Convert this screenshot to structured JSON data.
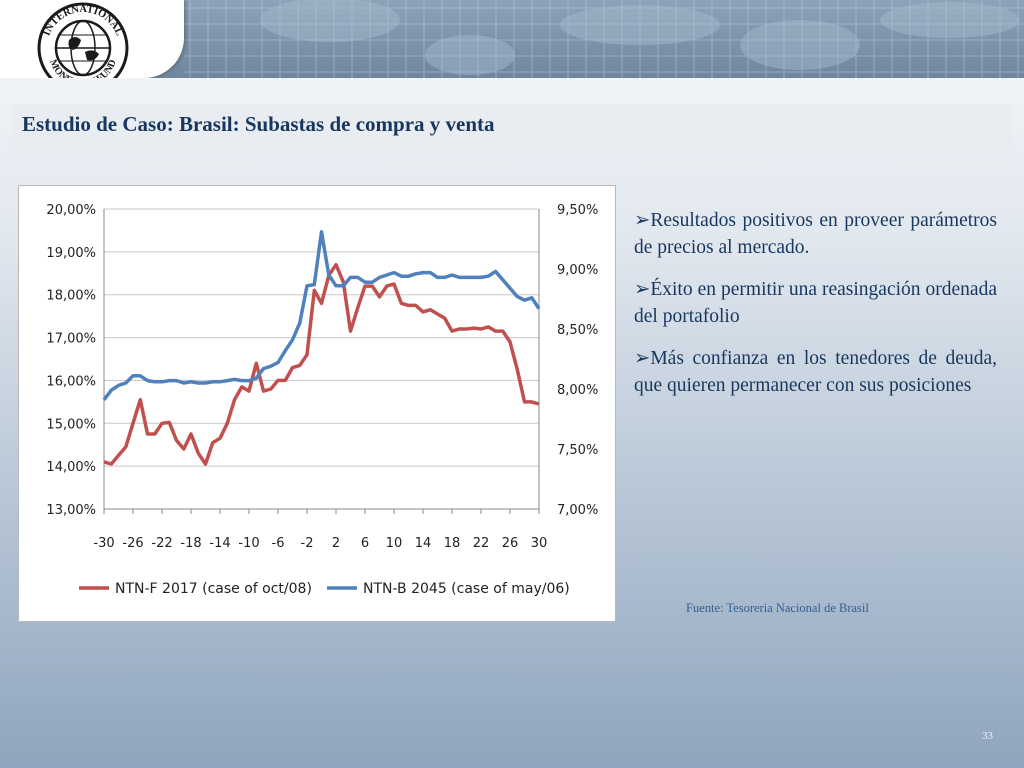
{
  "slide": {
    "logo_text": "INTERNATIONAL MONETARY FUND",
    "title": "Estudio de Caso: Brasil: Subastas de compra y venta",
    "bullets": [
      "Resultados positivos en proveer parámetros de precios al mercado.",
      "Éxito en permitir una reasingación ordenada del portafolio",
      "Más confianza en los tenedores de deuda, que quieren permanecer con sus posiciones"
    ],
    "bullet_marker": "➢",
    "source": "Fuente: Tesoreria Nacional de Brasil",
    "page_number": "33"
  },
  "colors": {
    "title": "#17375e",
    "series_ntnf": "#c0504d",
    "series_ntnb": "#4f81bd"
  },
  "chart_data": {
    "type": "line",
    "x": [
      -30,
      -29,
      -28,
      -27,
      -26,
      -25,
      -24,
      -23,
      -22,
      -21,
      -20,
      -19,
      -18,
      -17,
      -16,
      -15,
      -14,
      -13,
      -12,
      -11,
      -10,
      -9,
      -8,
      -7,
      -6,
      -5,
      -4,
      -3,
      -2,
      -1,
      0,
      1,
      2,
      3,
      4,
      5,
      6,
      7,
      8,
      9,
      10,
      11,
      12,
      13,
      14,
      15,
      16,
      17,
      18,
      19,
      20,
      21,
      22,
      23,
      24,
      25,
      26,
      27,
      28,
      29,
      30
    ],
    "x_ticks": [
      "-30",
      "-26",
      "-22",
      "-18",
      "-14",
      "-10",
      "-6",
      "-2",
      "2",
      "6",
      "10",
      "14",
      "18",
      "22",
      "26",
      "30"
    ],
    "y_left": {
      "min": 0.13,
      "max": 0.2,
      "ticks": [
        "20,00%",
        "19,00%",
        "18,00%",
        "17,00%",
        "16,00%",
        "15,00%",
        "14,00%",
        "13,00%"
      ]
    },
    "y_right": {
      "min": 0.07,
      "max": 0.095,
      "ticks": [
        "9,50%",
        "9,00%",
        "8,50%",
        "8,00%",
        "7,50%",
        "7,00%"
      ]
    },
    "series": [
      {
        "name": "NTN-F 2017 (case of oct/08)",
        "axis": "left",
        "values": [
          0.141,
          0.1405,
          0.1425,
          0.1445,
          0.15,
          0.1555,
          0.1475,
          0.1475,
          0.15,
          0.1502,
          0.146,
          0.144,
          0.1475,
          0.143,
          0.1405,
          0.1455,
          0.1465,
          0.15,
          0.1555,
          0.1585,
          0.1575,
          0.164,
          0.1575,
          0.158,
          0.16,
          0.16,
          0.163,
          0.1635,
          0.166,
          0.181,
          0.178,
          0.1845,
          0.187,
          0.183,
          0.1715,
          0.177,
          0.182,
          0.182,
          0.1795,
          0.182,
          0.1825,
          0.178,
          0.1775,
          0.1775,
          0.176,
          0.1765,
          0.1755,
          0.1745,
          0.1715,
          0.172,
          0.172,
          0.1722,
          0.172,
          0.1725,
          0.1715,
          0.1715,
          0.169,
          0.1625,
          0.155,
          0.155,
          0.1545
        ]
      },
      {
        "name": "NTN-B 2045 (case of may/06)",
        "axis": "right",
        "values": [
          0.0791,
          0.0799,
          0.0803,
          0.0805,
          0.0811,
          0.0811,
          0.0807,
          0.0806,
          0.0806,
          0.0807,
          0.0807,
          0.0805,
          0.0806,
          0.0805,
          0.0805,
          0.0806,
          0.0806,
          0.0807,
          0.0808,
          0.0807,
          0.0807,
          0.0809,
          0.0817,
          0.0819,
          0.0822,
          0.0832,
          0.0841,
          0.0855,
          0.0886,
          0.0887,
          0.0931,
          0.0895,
          0.0886,
          0.0886,
          0.0893,
          0.0893,
          0.0889,
          0.0889,
          0.0893,
          0.0895,
          0.0897,
          0.0894,
          0.0894,
          0.0896,
          0.0897,
          0.0897,
          0.0893,
          0.0893,
          0.0895,
          0.0893,
          0.0893,
          0.0893,
          0.0893,
          0.0894,
          0.0898,
          0.0891,
          0.0884,
          0.0877,
          0.0874,
          0.0876,
          0.0867
        ]
      }
    ],
    "legend": "bottom",
    "grid": "horizontal"
  }
}
